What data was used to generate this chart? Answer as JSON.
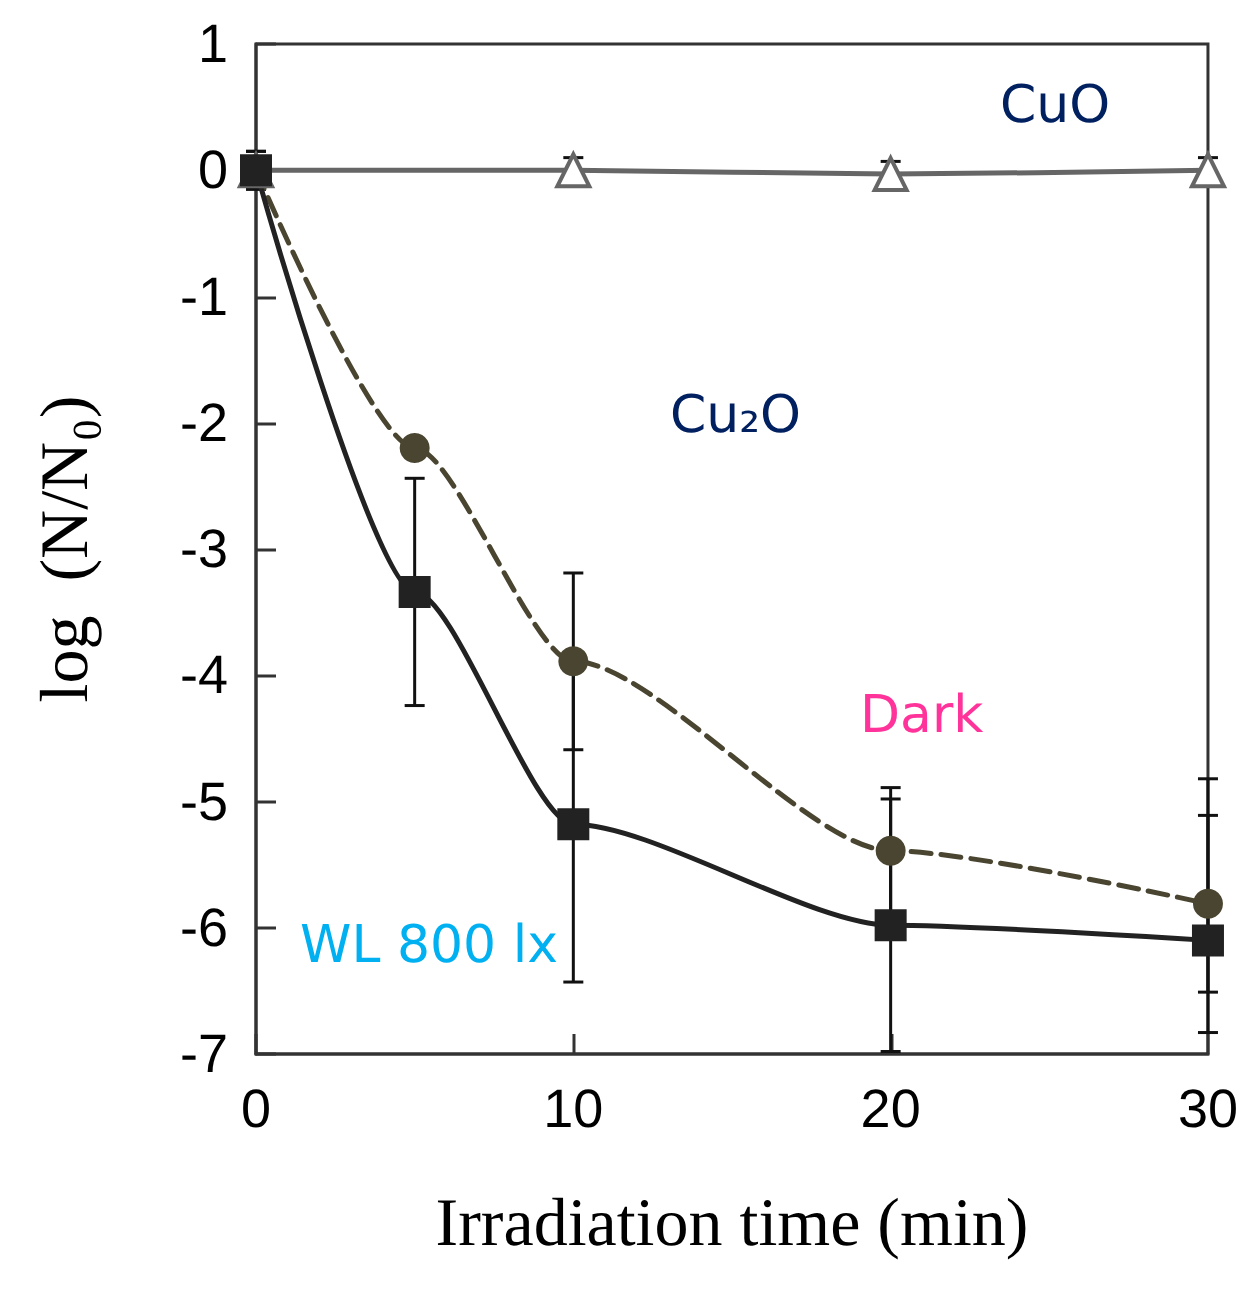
{
  "chart_data": {
    "type": "line",
    "xlabel": "Irradiation time (min)",
    "ylabel": "log  (N/N₀)",
    "xlim": [
      0,
      30
    ],
    "xticks": [
      0,
      10,
      20,
      30
    ],
    "ylim": [
      -7,
      1
    ],
    "yticks": [
      -7,
      -6,
      -5,
      -4,
      -3,
      -2,
      -1,
      0,
      1
    ],
    "grid": false,
    "legend": false,
    "annotations": [
      "Cu₂O"
    ],
    "series": [
      {
        "name": "CuO",
        "color": "#666666",
        "x": [
          0,
          10,
          20,
          30
        ],
        "values": [
          0,
          0,
          -0.03,
          0
        ],
        "errors": [
          0.15,
          0.1,
          0.1,
          0.1
        ],
        "marker": "triangle",
        "line_style": "solid"
      },
      {
        "name": "Dark",
        "color": "#4a4530",
        "x": [
          0,
          5,
          10,
          20,
          30
        ],
        "values": [
          0,
          -2.2,
          -3.89,
          -5.39,
          -5.81
        ],
        "errors": [
          null,
          null,
          0.7,
          0.5,
          0.7
        ],
        "marker": "circle",
        "line_style": "dashed"
      },
      {
        "name": "WL 800 lx",
        "color": "#222222",
        "x": [
          0,
          5,
          10,
          20,
          30
        ],
        "values": [
          0,
          -3.34,
          -5.18,
          -5.98,
          -6.1
        ],
        "errors": [
          0.15,
          0.9,
          1.25,
          1.0,
          [
            -6.83,
            -4.82
          ]
        ],
        "marker": "square",
        "line_style": "solid"
      }
    ]
  }
}
